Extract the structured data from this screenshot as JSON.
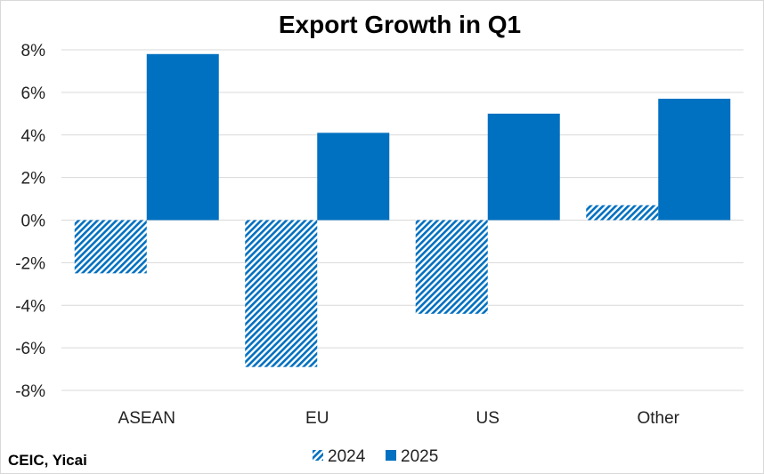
{
  "chart_data": {
    "type": "bar",
    "title": "Export Growth in Q1",
    "source": "CEIC, Yicai",
    "categories": [
      "ASEAN",
      "EU",
      "US",
      "Other"
    ],
    "series": [
      {
        "name": "2024",
        "values": [
          -2.5,
          -6.9,
          -4.4,
          0.7
        ],
        "color": "#0070c0",
        "pattern": "diagonal-hatch"
      },
      {
        "name": "2025",
        "values": [
          7.8,
          4.1,
          5.0,
          5.7
        ],
        "color": "#0070c0",
        "pattern": "solid"
      }
    ],
    "ylim": [
      -8,
      8
    ],
    "yticks": [
      8,
      6,
      4,
      2,
      0,
      -2,
      -4,
      -6,
      -8
    ],
    "ytick_labels": [
      "8%",
      "6%",
      "4%",
      "2%",
      "0%",
      "-2%",
      "-4%",
      "-6%",
      "-8%"
    ],
    "grid": true,
    "legend_position": "bottom-center"
  }
}
